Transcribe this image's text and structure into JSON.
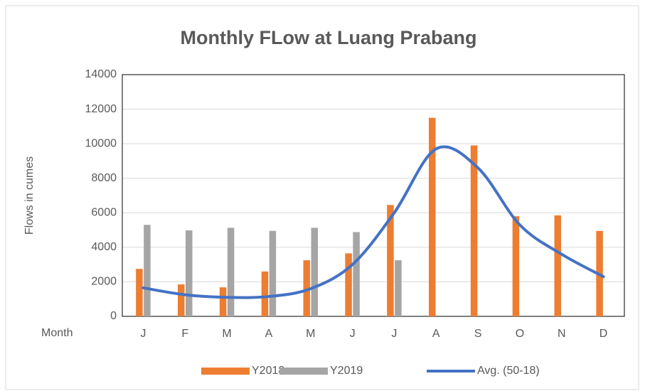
{
  "chart_data": {
    "type": "bar_line",
    "title": "Monthly FLow at Luang Prabang",
    "y_label": "Flows in cumes",
    "x_label": "Month",
    "categories": [
      "J",
      "F",
      "M",
      "A",
      "M",
      "J",
      "J",
      "A",
      "S",
      "O",
      "N",
      "D"
    ],
    "series": [
      {
        "name": "Y2018",
        "type": "bar",
        "color": "#ed7d31",
        "values": [
          2750,
          1850,
          1680,
          2600,
          3250,
          3650,
          6450,
          11500,
          9900,
          5800,
          5850,
          4950
        ]
      },
      {
        "name": "Y2019",
        "type": "bar",
        "color": "#a5a5a5",
        "values": [
          5300,
          4980,
          5130,
          4950,
          5130,
          4880,
          3250,
          null,
          null,
          null,
          null,
          null
        ]
      },
      {
        "name": "Avg. (50-18)",
        "type": "line",
        "color": "#4472c4",
        "values": [
          1650,
          1250,
          1100,
          1150,
          1600,
          3000,
          6000,
          9700,
          8600,
          5300,
          3600,
          2300
        ]
      }
    ],
    "ylim": [
      0,
      14000
    ],
    "yticks": [
      0,
      2000,
      4000,
      6000,
      8000,
      10000,
      12000,
      14000
    ],
    "grid": true,
    "legend": "bottom"
  }
}
